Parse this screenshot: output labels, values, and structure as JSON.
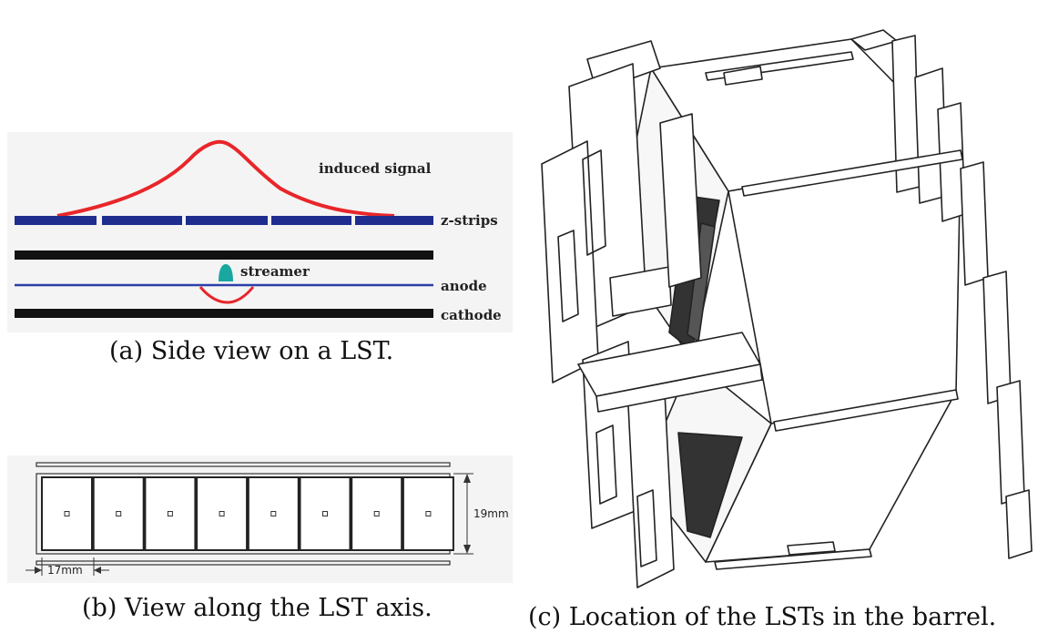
{
  "panel_a": {
    "labels": {
      "induced_signal": "induced signal",
      "z_strips": "z-strips",
      "streamer": "streamer",
      "anode": "anode",
      "cathode": "cathode"
    },
    "caption": "(a) Side view on a LST.",
    "colors": {
      "signal": "#e8262a",
      "strips": "#1f2d8f",
      "layer": "#111111",
      "anode": "#2a3fa8",
      "streamer": "#1aa7a0"
    }
  },
  "panel_b": {
    "cells": [
      "cell-1",
      "cell-2",
      "cell-3",
      "cell-4",
      "cell-5",
      "cell-6",
      "cell-7",
      "cell-8"
    ],
    "dim_height": "19mm",
    "dim_width": "17mm",
    "caption": "(b) View along the LST axis."
  },
  "panel_c": {
    "caption": "(c) Location of the LSTs in the barrel."
  }
}
